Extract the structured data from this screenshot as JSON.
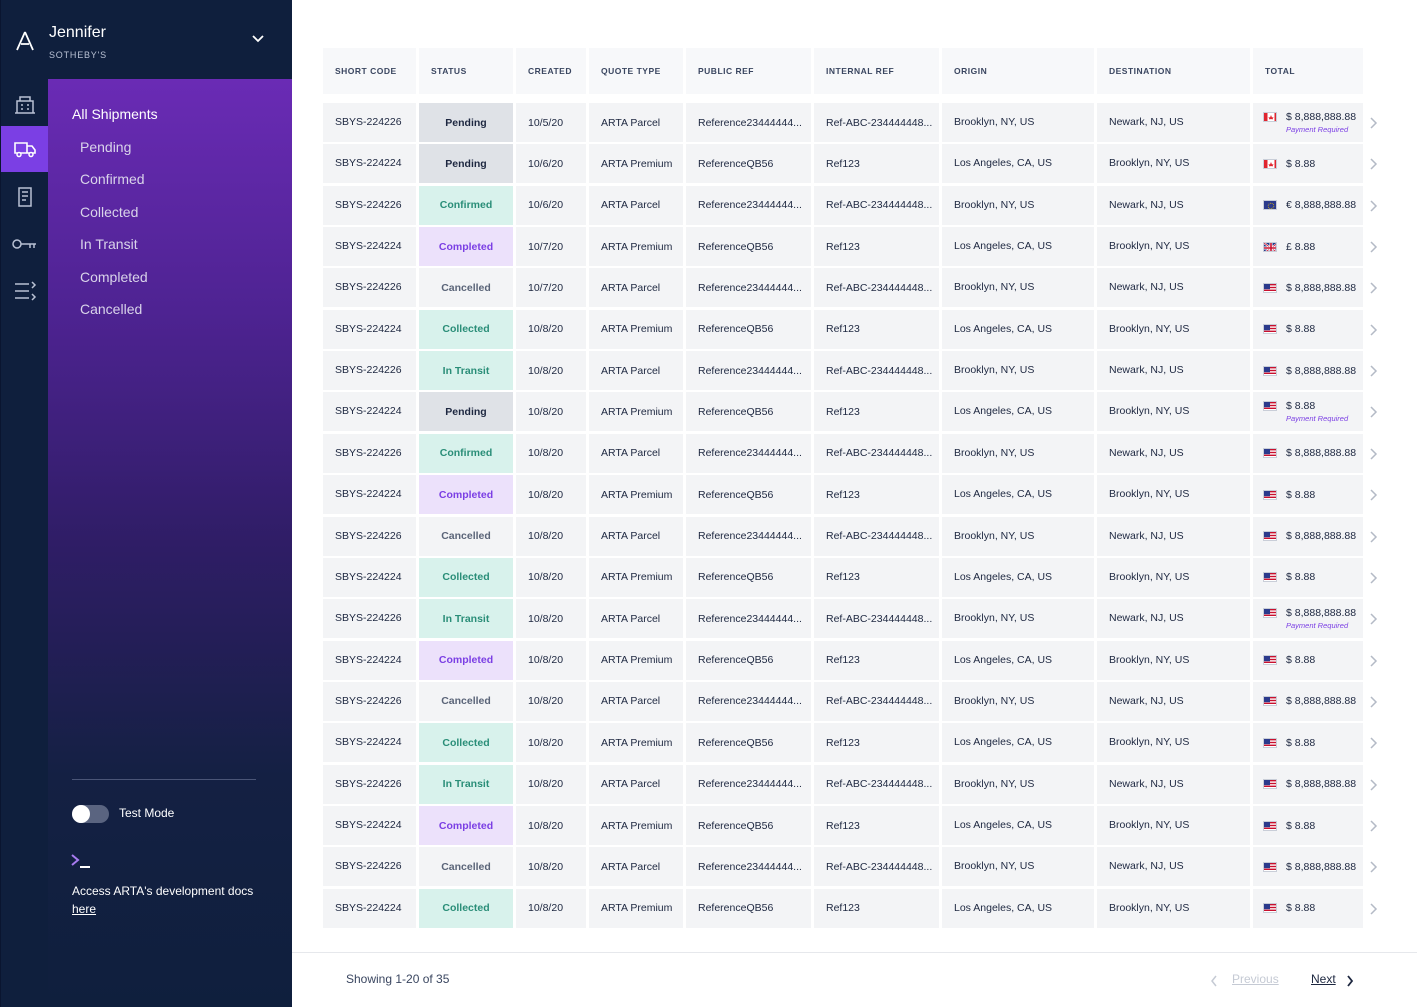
{
  "user": {
    "name": "Jennifer",
    "org": "SOTHEBY'S"
  },
  "rail_icons": [
    "building-icon",
    "truck-icon",
    "document-icon",
    "key-icon",
    "list-icon"
  ],
  "nav": {
    "all": "All Shipments",
    "items": [
      "Pending",
      "Confirmed",
      "Collected",
      "In Transit",
      "Completed",
      "Cancelled"
    ]
  },
  "test_mode": {
    "label": "Test Mode",
    "enabled": false
  },
  "docs": {
    "text": "Access ARTA's development docs",
    "link": "here"
  },
  "table": {
    "headers": [
      "SHORT CODE",
      "STATUS",
      "CREATED",
      "QUOTE TYPE",
      "PUBLIC  REF",
      "INTERNAL  REF",
      "ORIGIN",
      "DESTINATION",
      "TOTAL"
    ],
    "rows": [
      {
        "code": "SBYS-224226",
        "status": "Pending",
        "created": "10/5/20",
        "quote": "ARTA Parcel",
        "pub": "Reference23444444...",
        "int": "Ref-ABC-234444448...",
        "origin": "Brooklyn, NY, US",
        "dest": "Newark, NJ, US",
        "flag": "ca",
        "total": "$ 8,888,888.88",
        "payment": "Payment Required"
      },
      {
        "code": "SBYS-224224",
        "status": "Pending",
        "created": "10/6/20",
        "quote": "ARTA Premium",
        "pub": "ReferenceQB56",
        "int": "Ref123",
        "origin": "Los Angeles, CA, US",
        "dest": "Brooklyn, NY, US",
        "flag": "ca",
        "total": "$ 8.88",
        "payment": ""
      },
      {
        "code": "SBYS-224226",
        "status": "Confirmed",
        "created": "10/6/20",
        "quote": "ARTA Parcel",
        "pub": "Reference23444444...",
        "int": "Ref-ABC-234444448...",
        "origin": "Brooklyn, NY, US",
        "dest": "Newark, NJ, US",
        "flag": "eu",
        "total": "€ 8,888,888.88",
        "payment": ""
      },
      {
        "code": "SBYS-224224",
        "status": "Completed",
        "created": "10/7/20",
        "quote": "ARTA Premium",
        "pub": "ReferenceQB56",
        "int": "Ref123",
        "origin": "Los Angeles, CA, US",
        "dest": "Brooklyn, NY, US",
        "flag": "uk",
        "total": "£ 8.88",
        "payment": ""
      },
      {
        "code": "SBYS-224226",
        "status": "Cancelled",
        "created": "10/7/20",
        "quote": "ARTA Parcel",
        "pub": "Reference23444444...",
        "int": "Ref-ABC-234444448...",
        "origin": "Brooklyn, NY, US",
        "dest": "Newark, NJ, US",
        "flag": "us",
        "total": "$ 8,888,888.88",
        "payment": ""
      },
      {
        "code": "SBYS-224224",
        "status": "Collected",
        "created": "10/8/20",
        "quote": "ARTA Premium",
        "pub": "ReferenceQB56",
        "int": "Ref123",
        "origin": "Los Angeles, CA, US",
        "dest": "Brooklyn, NY, US",
        "flag": "us",
        "total": "$ 8.88",
        "payment": ""
      },
      {
        "code": "SBYS-224226",
        "status": "In Transit",
        "created": "10/8/20",
        "quote": "ARTA Parcel",
        "pub": "Reference23444444...",
        "int": "Ref-ABC-234444448...",
        "origin": "Brooklyn, NY, US",
        "dest": "Newark, NJ, US",
        "flag": "us",
        "total": "$ 8,888,888.88",
        "payment": ""
      },
      {
        "code": "SBYS-224224",
        "status": "Pending",
        "created": "10/8/20",
        "quote": "ARTA Premium",
        "pub": "ReferenceQB56",
        "int": "Ref123",
        "origin": "Los Angeles, CA, US",
        "dest": "Brooklyn, NY, US",
        "flag": "us",
        "total": "$ 8.88",
        "payment": "Payment Required"
      },
      {
        "code": "SBYS-224226",
        "status": "Confirmed",
        "created": "10/8/20",
        "quote": "ARTA Parcel",
        "pub": "Reference23444444...",
        "int": "Ref-ABC-234444448...",
        "origin": "Brooklyn, NY, US",
        "dest": "Newark, NJ, US",
        "flag": "us",
        "total": "$ 8,888,888.88",
        "payment": ""
      },
      {
        "code": "SBYS-224224",
        "status": "Completed",
        "created": "10/8/20",
        "quote": "ARTA Premium",
        "pub": "ReferenceQB56",
        "int": "Ref123",
        "origin": "Los Angeles, CA, US",
        "dest": "Brooklyn, NY, US",
        "flag": "us",
        "total": "$ 8.88",
        "payment": ""
      },
      {
        "code": "SBYS-224226",
        "status": "Cancelled",
        "created": "10/8/20",
        "quote": "ARTA Parcel",
        "pub": "Reference23444444...",
        "int": "Ref-ABC-234444448...",
        "origin": "Brooklyn, NY, US",
        "dest": "Newark, NJ, US",
        "flag": "us",
        "total": "$ 8,888,888.88",
        "payment": ""
      },
      {
        "code": "SBYS-224224",
        "status": "Collected",
        "created": "10/8/20",
        "quote": "ARTA Premium",
        "pub": "ReferenceQB56",
        "int": "Ref123",
        "origin": "Los Angeles, CA, US",
        "dest": "Brooklyn, NY, US",
        "flag": "us",
        "total": "$ 8.88",
        "payment": ""
      },
      {
        "code": "SBYS-224226",
        "status": "In Transit",
        "created": "10/8/20",
        "quote": "ARTA Parcel",
        "pub": "Reference23444444...",
        "int": "Ref-ABC-234444448...",
        "origin": "Brooklyn, NY, US",
        "dest": "Newark, NJ, US",
        "flag": "us",
        "total": "$ 8,888,888.88",
        "payment": "Payment Required"
      },
      {
        "code": "SBYS-224224",
        "status": "Completed",
        "created": "10/8/20",
        "quote": "ARTA Premium",
        "pub": "ReferenceQB56",
        "int": "Ref123",
        "origin": "Los Angeles, CA, US",
        "dest": "Brooklyn, NY, US",
        "flag": "us",
        "total": "$ 8.88",
        "payment": ""
      },
      {
        "code": "SBYS-224226",
        "status": "Cancelled",
        "created": "10/8/20",
        "quote": "ARTA Parcel",
        "pub": "Reference23444444...",
        "int": "Ref-ABC-234444448...",
        "origin": "Brooklyn, NY, US",
        "dest": "Newark, NJ, US",
        "flag": "us",
        "total": "$ 8,888,888.88",
        "payment": ""
      },
      {
        "code": "SBYS-224224",
        "status": "Collected",
        "created": "10/8/20",
        "quote": "ARTA Premium",
        "pub": "ReferenceQB56",
        "int": "Ref123",
        "origin": "Los Angeles, CA, US",
        "dest": "Brooklyn, NY, US",
        "flag": "us",
        "total": "$ 8.88",
        "payment": ""
      },
      {
        "code": "SBYS-224226",
        "status": "In Transit",
        "created": "10/8/20",
        "quote": "ARTA Parcel",
        "pub": "Reference23444444...",
        "int": "Ref-ABC-234444448...",
        "origin": "Brooklyn, NY, US",
        "dest": "Newark, NJ, US",
        "flag": "us",
        "total": "$ 8,888,888.88",
        "payment": ""
      },
      {
        "code": "SBYS-224224",
        "status": "Completed",
        "created": "10/8/20",
        "quote": "ARTA Premium",
        "pub": "ReferenceQB56",
        "int": "Ref123",
        "origin": "Los Angeles, CA, US",
        "dest": "Brooklyn, NY, US",
        "flag": "us",
        "total": "$ 8.88",
        "payment": ""
      },
      {
        "code": "SBYS-224226",
        "status": "Cancelled",
        "created": "10/8/20",
        "quote": "ARTA Parcel",
        "pub": "Reference23444444...",
        "int": "Ref-ABC-234444448...",
        "origin": "Brooklyn, NY, US",
        "dest": "Newark, NJ, US",
        "flag": "us",
        "total": "$ 8,888,888.88",
        "payment": ""
      },
      {
        "code": "SBYS-224224",
        "status": "Collected",
        "created": "10/8/20",
        "quote": "ARTA Premium",
        "pub": "ReferenceQB56",
        "int": "Ref123",
        "origin": "Los Angeles, CA, US",
        "dest": "Brooklyn, NY, US",
        "flag": "us",
        "total": "$ 8.88",
        "payment": ""
      }
    ]
  },
  "footer": {
    "showing": "Showing 1-20 of 35",
    "previous": "Previous",
    "next": "Next"
  },
  "colors": {
    "accent": "#7b3fe4",
    "sidebar": "#0f1f3d",
    "confirmed": "#2a8e78"
  }
}
